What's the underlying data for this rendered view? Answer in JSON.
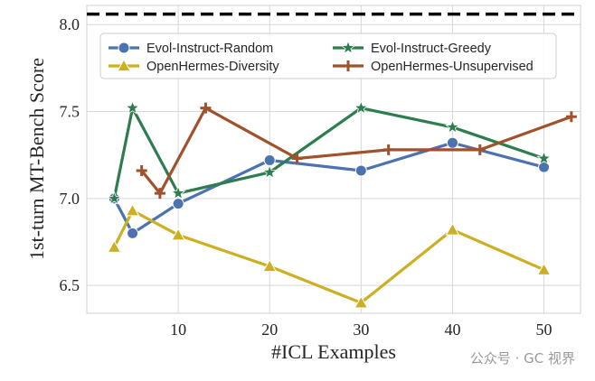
{
  "chart_data": {
    "type": "line",
    "title": "",
    "xlabel": "#ICL Examples",
    "ylabel": "1st-turn MT-Bench Score",
    "xlim": [
      0,
      54
    ],
    "ylim": [
      6.34,
      8.11
    ],
    "xticks": [
      10,
      20,
      30,
      40,
      50
    ],
    "yticks": [
      6.5,
      7.0,
      7.5,
      8.0
    ],
    "xtick_labels": [
      "10",
      "20",
      "30",
      "40",
      "50"
    ],
    "ytick_labels": [
      "6.5",
      "7.0",
      "7.5",
      "8.0"
    ],
    "grid": true,
    "legend_position": "top",
    "reference_line": {
      "y": 8.06,
      "style": "dashed",
      "color": "#000000"
    },
    "series": [
      {
        "name": "Evol-Instruct-Random",
        "color": "#4c72b0",
        "marker": "circle",
        "x": [
          3,
          5,
          10,
          20,
          30,
          40,
          50
        ],
        "y": [
          7.0,
          6.8,
          6.97,
          7.22,
          7.16,
          7.32,
          7.18
        ]
      },
      {
        "name": "OpenHermes-Diversity",
        "color": "#ccb022",
        "marker": "triangle",
        "x": [
          3,
          5,
          10,
          20,
          30,
          40,
          50
        ],
        "y": [
          6.72,
          6.93,
          6.79,
          6.61,
          6.4,
          6.82,
          6.59
        ]
      },
      {
        "name": "Evol-Instruct-Greedy",
        "color": "#2e7d4f",
        "marker": "star",
        "x": [
          3,
          5,
          10,
          20,
          30,
          40,
          50
        ],
        "y": [
          7.0,
          7.52,
          7.03,
          7.15,
          7.52,
          7.41,
          7.23
        ]
      },
      {
        "name": "OpenHermes-Unsupervised",
        "color": "#a0522d",
        "marker": "plus",
        "x": [
          6,
          8,
          13,
          23,
          33,
          43,
          53
        ],
        "y": [
          7.16,
          7.03,
          7.52,
          7.23,
          7.28,
          7.28,
          7.47
        ]
      }
    ],
    "watermark": "公众号 · GC 视界"
  }
}
